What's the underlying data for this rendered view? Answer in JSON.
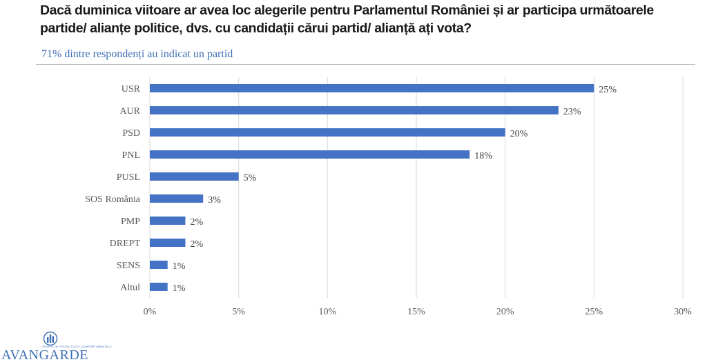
{
  "header": {
    "title_pre": "Dacă duminica viitoare ar avea loc alegerile pentru ",
    "title_bold": "Parlamentul României",
    "title_post": " și ar participa următoarele partide/ alianțe politice, dvs. cu candidații cărui partid/ alianță ați vota?",
    "subtitle": "71% dintre respondenți au indicat un partid"
  },
  "colors": {
    "bar": "#4472c4",
    "grid": "#d9d9d9",
    "accent": "#3d6fb4"
  },
  "chart_data": {
    "type": "bar",
    "orientation": "horizontal",
    "categories": [
      "USR",
      "AUR",
      "PSD",
      "PNL",
      "PUSL",
      "SOS România",
      "PMP",
      "DREPT",
      "SENS",
      "Altul"
    ],
    "values": [
      25,
      23,
      20,
      18,
      5,
      3,
      2,
      2,
      1,
      1
    ],
    "value_labels": [
      "25%",
      "23%",
      "20%",
      "18%",
      "5%",
      "3%",
      "2%",
      "2%",
      "1%",
      "1%"
    ],
    "xlim": [
      0,
      30
    ],
    "xticks": [
      0,
      5,
      10,
      15,
      20,
      25,
      30
    ],
    "xtick_labels": [
      "0%",
      "5%",
      "10%",
      "15%",
      "20%",
      "25%",
      "30%"
    ],
    "grid": true,
    "legend": "none"
  },
  "logo": {
    "tagline": "GRUPUL DE STUDII SOCIO-COMPORTAMENTALE",
    "wordmark": "AVANGARDE",
    "icon": "avangarde-logo-icon"
  }
}
